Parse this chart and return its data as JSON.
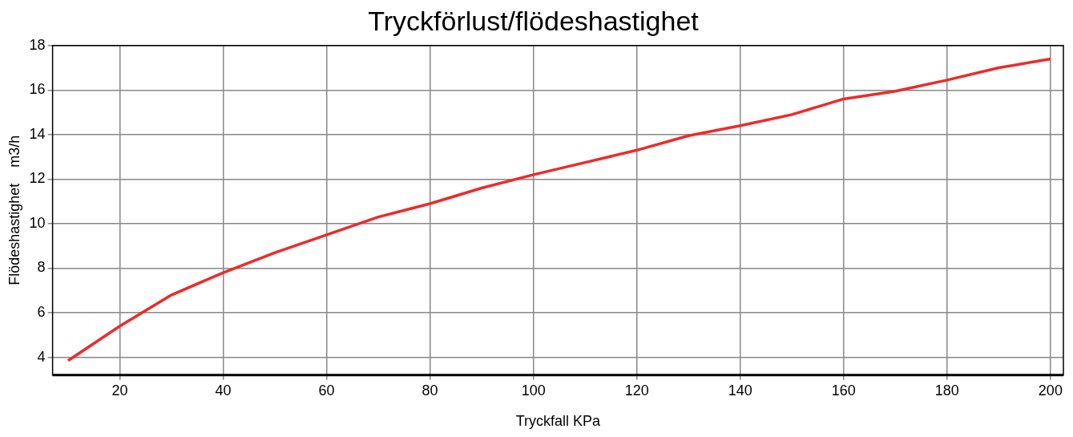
{
  "chart_data": {
    "type": "line",
    "title": "Tryckförlust/flödeshastighet",
    "xlabel": "Tryckfall KPa",
    "ylabel": "Flödeshastighet    m3/h",
    "x": [
      10,
      20,
      30,
      40,
      50,
      60,
      70,
      80,
      90,
      100,
      110,
      120,
      130,
      140,
      150,
      160,
      170,
      180,
      190,
      200
    ],
    "series": [
      {
        "color": "#ee2a2a",
        "values": [
          3.85,
          5.4,
          6.8,
          7.8,
          8.7,
          9.5,
          10.3,
          10.9,
          11.6,
          12.2,
          12.75,
          13.3,
          13.95,
          14.4,
          14.9,
          15.6,
          15.95,
          16.45,
          17.0,
          17.4
        ]
      }
    ],
    "xlim": [
      7,
      202.5
    ],
    "xticks": [
      20,
      40,
      60,
      80,
      100,
      120,
      140,
      160,
      180,
      200
    ],
    "ylim": [
      3.2,
      18
    ],
    "yticks": [
      4,
      6,
      8,
      10,
      12,
      14,
      16,
      18
    ],
    "grid": true,
    "legend": false,
    "marker": "none",
    "line_style": "solid"
  }
}
